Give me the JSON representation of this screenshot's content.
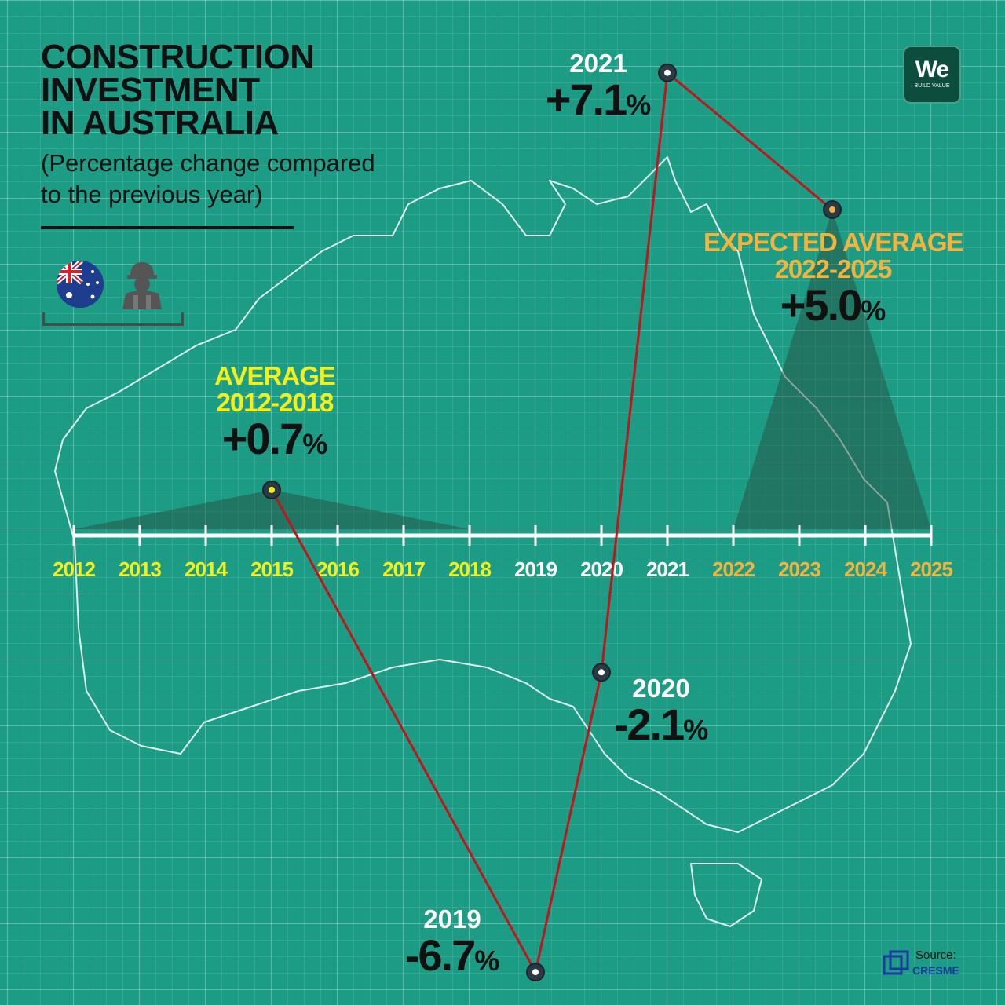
{
  "title_lines": [
    "CONSTRUCTION",
    "INVESTMENT",
    "IN AUSTRALIA"
  ],
  "subtitle_lines": [
    "(Percentage change compared",
    "to the previous year)"
  ],
  "logo": {
    "main": "We",
    "tagline": "BUILD VALUE"
  },
  "source": {
    "label": "Source:",
    "name": "CRESME"
  },
  "icons": [
    "australia-flag-icon",
    "construction-worker-icon",
    "bracket-divider",
    "cresme-logo-icon"
  ],
  "colors": {
    "background": "#1c9c84",
    "line": "#c0151b",
    "past_years": "#f3ef1a",
    "covid_years": "#ffffff",
    "forecast_years": "#f2b43d",
    "text_dark": "#111111"
  },
  "callouts": {
    "avg_2012_2018": {
      "label_line1": "AVERAGE",
      "label_line2": "2012-2018",
      "value": "+0.7",
      "unit": "%"
    },
    "y2019": {
      "year": "2019",
      "value": "-6.7",
      "unit": "%"
    },
    "y2020": {
      "year": "2020",
      "value": "-2.1",
      "unit": "%"
    },
    "y2021": {
      "year": "2021",
      "value": "+7.1",
      "unit": "%"
    },
    "avg_2022_2025": {
      "label_line1": "EXPECTED AVERAGE",
      "label_line2": "2022-2025",
      "value": "+5.0",
      "unit": "%"
    }
  },
  "chart_data": {
    "type": "line",
    "x_axis_years": [
      "2012",
      "2013",
      "2014",
      "2015",
      "2016",
      "2017",
      "2018",
      "2019",
      "2020",
      "2021",
      "2022",
      "2023",
      "2024",
      "2025"
    ],
    "year_groups": {
      "historical_average": [
        "2012",
        "2013",
        "2014",
        "2015",
        "2016",
        "2017",
        "2018"
      ],
      "highlighted": [
        "2019",
        "2020",
        "2021"
      ],
      "forecast": [
        "2022",
        "2023",
        "2024",
        "2025"
      ]
    },
    "series": [
      {
        "points": [
          {
            "x": "2015",
            "y": 0.7,
            "label": "AVERAGE 2012-2018",
            "range": [
              "2012",
              "2018"
            ]
          },
          {
            "x": "2019",
            "y": -6.7
          },
          {
            "x": "2020",
            "y": -2.1
          },
          {
            "x": "2021",
            "y": 7.1
          },
          {
            "x": "2023.5",
            "y": 5.0,
            "label": "EXPECTED AVERAGE 2022-2025",
            "range": [
              "2022",
              "2025"
            ]
          }
        ]
      }
    ],
    "y_unit": "%",
    "grid": true,
    "legend": "none"
  }
}
